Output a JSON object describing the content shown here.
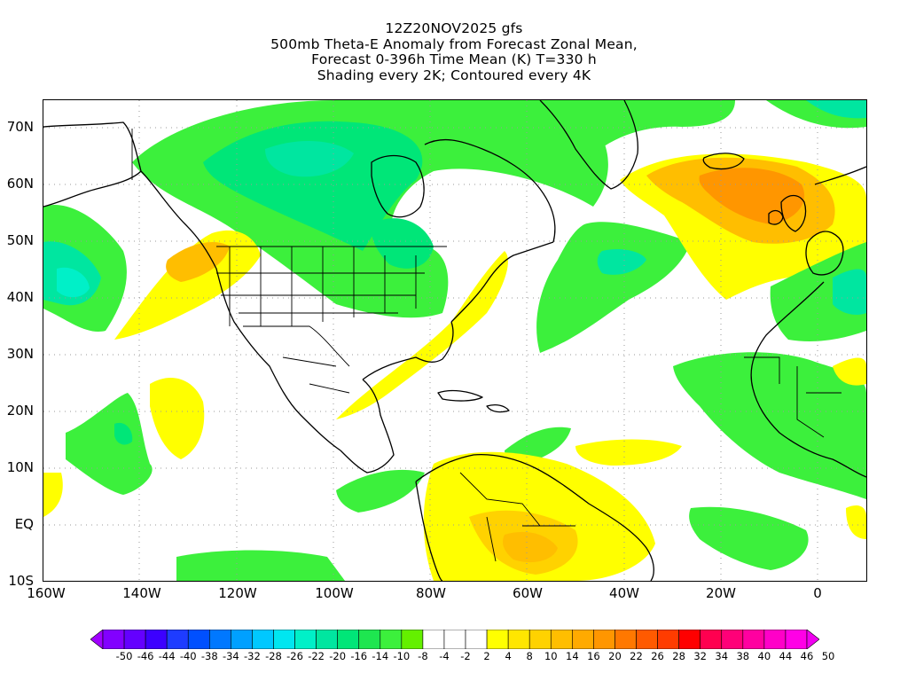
{
  "title": {
    "line1": "12Z20NOV2025 gfs",
    "line2": "500mb Theta-E Anomaly from Forecast Zonal Mean,",
    "line3": "Forecast 0-396h Time Mean (K) T=330 h",
    "line4": "Shading every 2K; Contoured every 4K"
  },
  "map": {
    "lat_ticks": [
      "70N",
      "60N",
      "50N",
      "40N",
      "30N",
      "20N",
      "10N",
      "EQ",
      "10S"
    ],
    "lon_ticks": [
      "160W",
      "140W",
      "120W",
      "100W",
      "80W",
      "60W",
      "40W",
      "20W",
      "0"
    ],
    "lat_range": [
      -10,
      75
    ],
    "lon_range": [
      -160,
      10
    ],
    "gridlines": "dotted"
  },
  "colorbar": {
    "labels": [
      "-50",
      "-46",
      "-44",
      "-40",
      "-38",
      "-34",
      "-32",
      "-28",
      "-26",
      "-22",
      "-20",
      "-16",
      "-14",
      "-10",
      "-8",
      "-4",
      "-2",
      "2",
      "4",
      "8",
      "10",
      "14",
      "16",
      "20",
      "22",
      "26",
      "28",
      "32",
      "34",
      "38",
      "40",
      "44",
      "46",
      "50"
    ],
    "colors": [
      "#a000ff",
      "#8200ff",
      "#6400ff",
      "#3c00ff",
      "#1e3cff",
      "#0050ff",
      "#0078ff",
      "#00a0ff",
      "#00c8ff",
      "#00e6f0",
      "#00f0c8",
      "#00e6a0",
      "#00e678",
      "#1ee650",
      "#3cf03c",
      "#64f000",
      "#ffffff",
      "#ffffff",
      "#ffffff",
      "#ffff00",
      "#ffe600",
      "#ffd200",
      "#ffbe00",
      "#ffaa00",
      "#ff9600",
      "#ff7800",
      "#ff5a00",
      "#ff3c00",
      "#ff0000",
      "#ff0050",
      "#ff0078",
      "#ff00a0",
      "#ff00c8",
      "#ff00e6",
      "#f000f0"
    ]
  }
}
